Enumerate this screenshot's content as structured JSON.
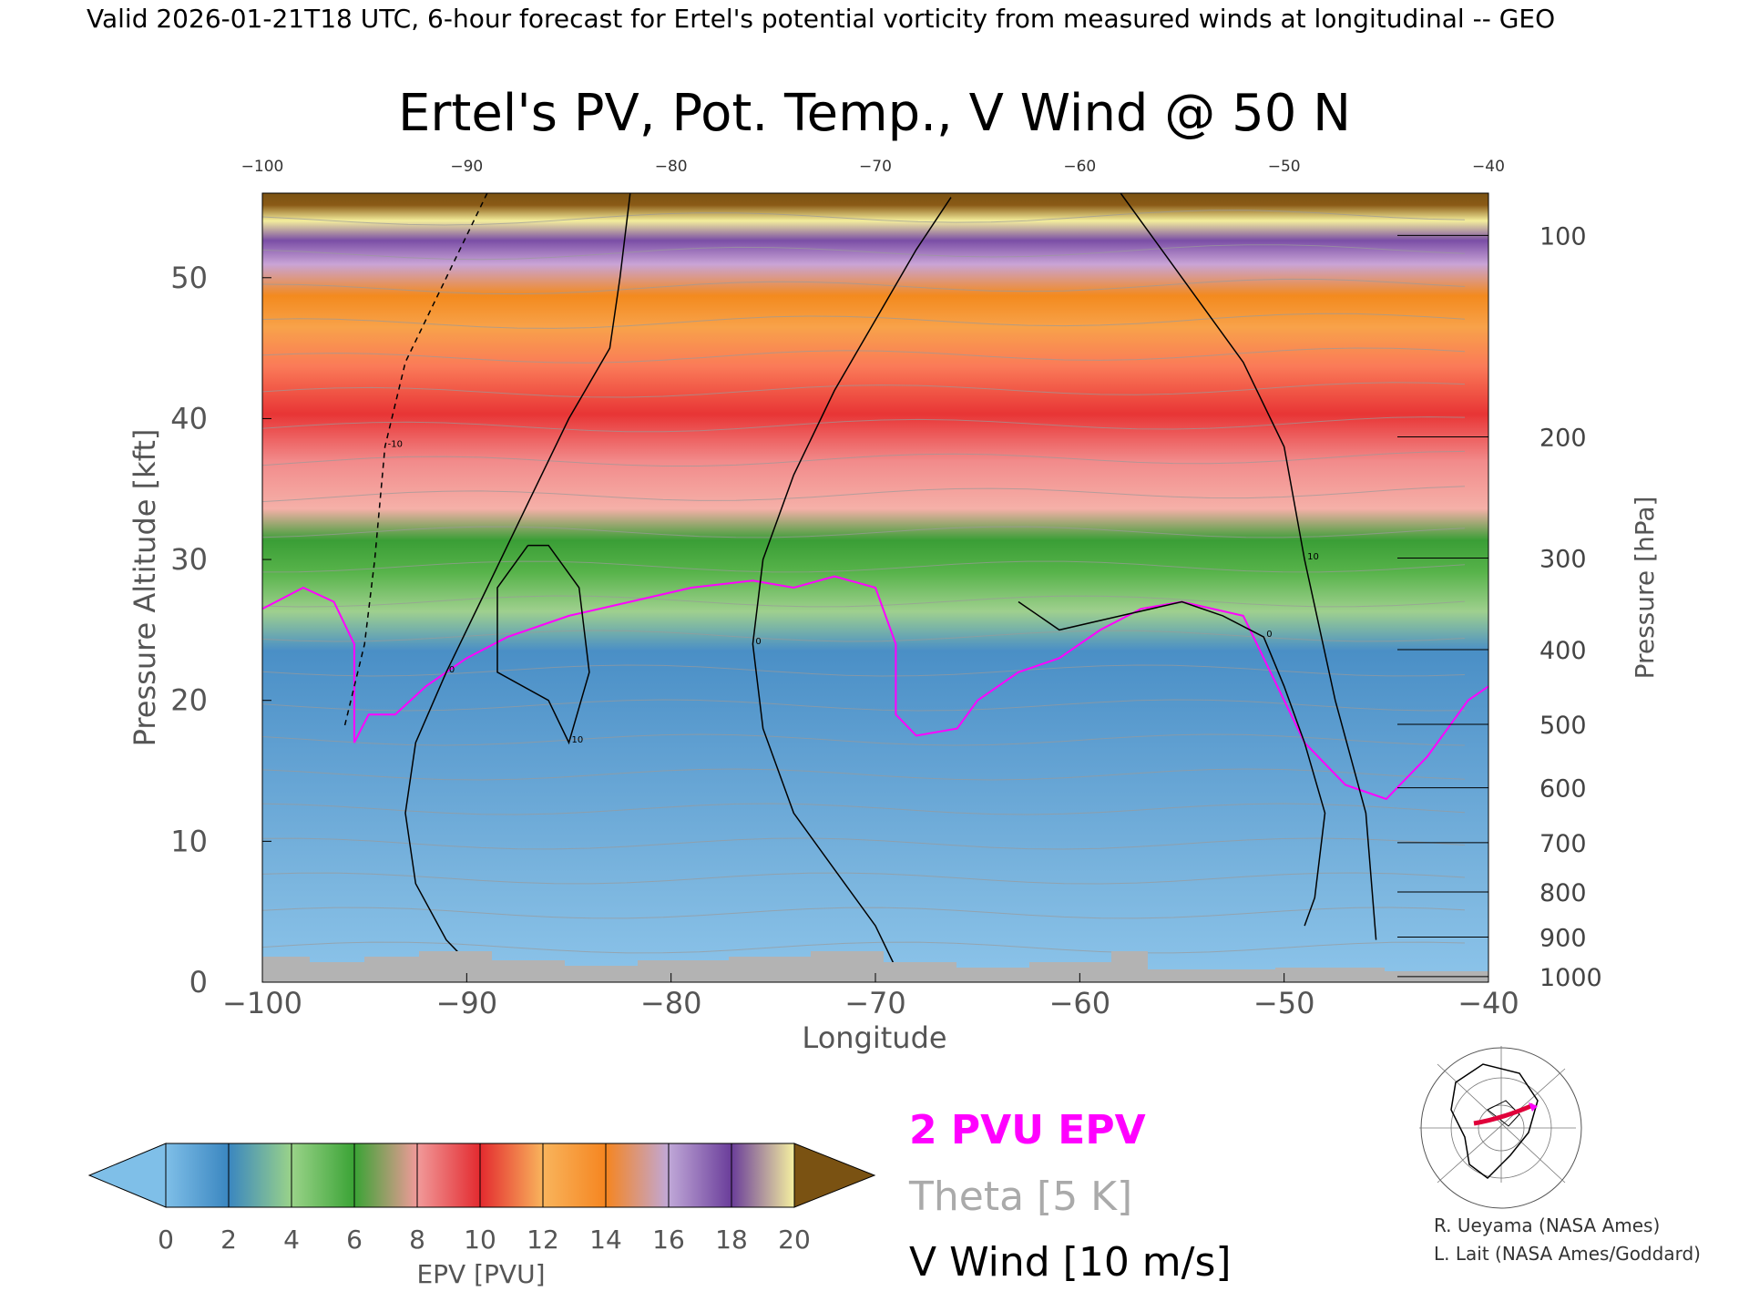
{
  "header": "Valid 2026-01-21T18 UTC, 6-hour forecast for Ertel's potential vorticity from measured winds at longitudinal -- GEO",
  "chart_data": {
    "type": "heatmap",
    "title": "Ertel's PV, Pot. Temp., V Wind @ 50 N",
    "xlabel": "Longitude",
    "ylabel": "Pressure Altitude [kft]",
    "y2label": "Pressure [hPa]",
    "xlim": [
      -100,
      -40
    ],
    "ylim": [
      0,
      56
    ],
    "x_ticks": [
      -100,
      -90,
      -80,
      -70,
      -60,
      -50,
      -40
    ],
    "y_ticks": [
      0,
      10,
      20,
      30,
      40,
      50
    ],
    "pressure_ticks": [
      {
        "hpa": 100,
        "kft": 53.0
      },
      {
        "hpa": 200,
        "kft": 38.7
      },
      {
        "hpa": 300,
        "kft": 30.1
      },
      {
        "hpa": 400,
        "kft": 23.6
      },
      {
        "hpa": 500,
        "kft": 18.3
      },
      {
        "hpa": 600,
        "kft": 13.8
      },
      {
        "hpa": 700,
        "kft": 9.9
      },
      {
        "hpa": 800,
        "kft": 6.4
      },
      {
        "hpa": 900,
        "kft": 3.2
      },
      {
        "hpa": 1000,
        "kft": 0.4
      }
    ],
    "pv_2pvu_contour": [
      [
        -100,
        26.5
      ],
      [
        -98,
        28
      ],
      [
        -96.5,
        27
      ],
      [
        -95.5,
        24
      ],
      [
        -95.5,
        17
      ],
      [
        -94.8,
        19
      ],
      [
        -93.5,
        19
      ],
      [
        -92,
        21
      ],
      [
        -90,
        23
      ],
      [
        -88,
        24.5
      ],
      [
        -85,
        26
      ],
      [
        -82,
        27
      ],
      [
        -79,
        28
      ],
      [
        -76,
        28.5
      ],
      [
        -74,
        28
      ],
      [
        -72,
        28.8
      ],
      [
        -70,
        28
      ],
      [
        -69,
        24
      ],
      [
        -69,
        19
      ],
      [
        -68,
        17.5
      ],
      [
        -66,
        18
      ],
      [
        -65,
        20
      ],
      [
        -63,
        22
      ],
      [
        -61,
        23
      ],
      [
        -59,
        25
      ],
      [
        -57,
        26.5
      ],
      [
        -55,
        27
      ],
      [
        -52,
        26
      ],
      [
        -50,
        20
      ],
      [
        -49,
        17
      ],
      [
        -47,
        14
      ],
      [
        -45,
        13
      ],
      [
        -43,
        16
      ],
      [
        -41,
        20
      ],
      [
        -40,
        21
      ]
    ],
    "v_wind_contours": [
      {
        "label": "0",
        "points": [
          [
            -66.3,
            55.7
          ],
          [
            -68,
            52
          ],
          [
            -70,
            47
          ],
          [
            -72,
            42
          ],
          [
            -74,
            36
          ],
          [
            -75.5,
            30
          ],
          [
            -76,
            24
          ],
          [
            -75.5,
            18
          ],
          [
            -74,
            12
          ],
          [
            -72,
            8
          ],
          [
            -70,
            4
          ],
          [
            -69,
            1
          ]
        ]
      },
      {
        "label": "0",
        "points": [
          [
            -82,
            56
          ],
          [
            -82.5,
            50
          ],
          [
            -83,
            45
          ],
          [
            -85,
            40
          ],
          [
            -87,
            34
          ],
          [
            -89,
            28
          ],
          [
            -91,
            22
          ],
          [
            -92.5,
            17
          ],
          [
            -93,
            12
          ],
          [
            -92.5,
            7
          ],
          [
            -91,
            3
          ],
          [
            -90,
            1.5
          ]
        ]
      },
      {
        "label": "10",
        "points": [
          [
            -58,
            56
          ],
          [
            -55,
            50
          ],
          [
            -52,
            44
          ],
          [
            -50,
            38
          ],
          [
            -49,
            30
          ],
          [
            -47.5,
            20
          ],
          [
            -46,
            12
          ],
          [
            -45.5,
            3
          ]
        ]
      },
      {
        "label": "10",
        "points": [
          [
            -87,
            31
          ],
          [
            -88.5,
            28
          ],
          [
            -88.5,
            22
          ],
          [
            -86,
            20
          ],
          [
            -85,
            17
          ],
          [
            -84,
            22
          ],
          [
            -84.5,
            28
          ],
          [
            -86,
            31
          ],
          [
            -87,
            31
          ]
        ]
      },
      {
        "label": "-10",
        "points": [
          [
            -89,
            56
          ],
          [
            -91,
            50
          ],
          [
            -93,
            44
          ],
          [
            -94,
            38
          ],
          [
            -94.5,
            30
          ],
          [
            -95,
            24
          ],
          [
            -96,
            18
          ]
        ]
      },
      {
        "label": "0",
        "points": [
          [
            -63,
            27
          ],
          [
            -61,
            25
          ],
          [
            -58,
            26
          ],
          [
            -55,
            27
          ],
          [
            -53,
            26
          ],
          [
            -51,
            24.5
          ],
          [
            -50,
            21
          ],
          [
            -49,
            17
          ],
          [
            -48,
            12
          ],
          [
            -48.5,
            6
          ],
          [
            -49,
            4
          ]
        ]
      }
    ],
    "colorbar": {
      "label": "EPV [PVU]",
      "ticks": [
        0,
        2,
        4,
        6,
        8,
        10,
        12,
        14,
        16,
        18,
        20
      ],
      "colors": [
        "#7fbfe8",
        "#3a86c0",
        "#9ad389",
        "#3aa335",
        "#f19a9a",
        "#e32a2f",
        "#f9b45c",
        "#f58520",
        "#c0a8d8",
        "#6a3d9a",
        "#f5f0a0",
        "#7a5212"
      ]
    },
    "legend": [
      {
        "name": "2 PVU EPV",
        "color": "#ff00ff"
      },
      {
        "name": "Theta [5 K]",
        "color": "#aaaaaa"
      },
      {
        "name": "V Wind [10 m/s]",
        "color": "#000000"
      }
    ]
  },
  "credits": [
    "R. Ueyama (NASA Ames)",
    "L. Lait (NASA Ames/Goddard)"
  ]
}
